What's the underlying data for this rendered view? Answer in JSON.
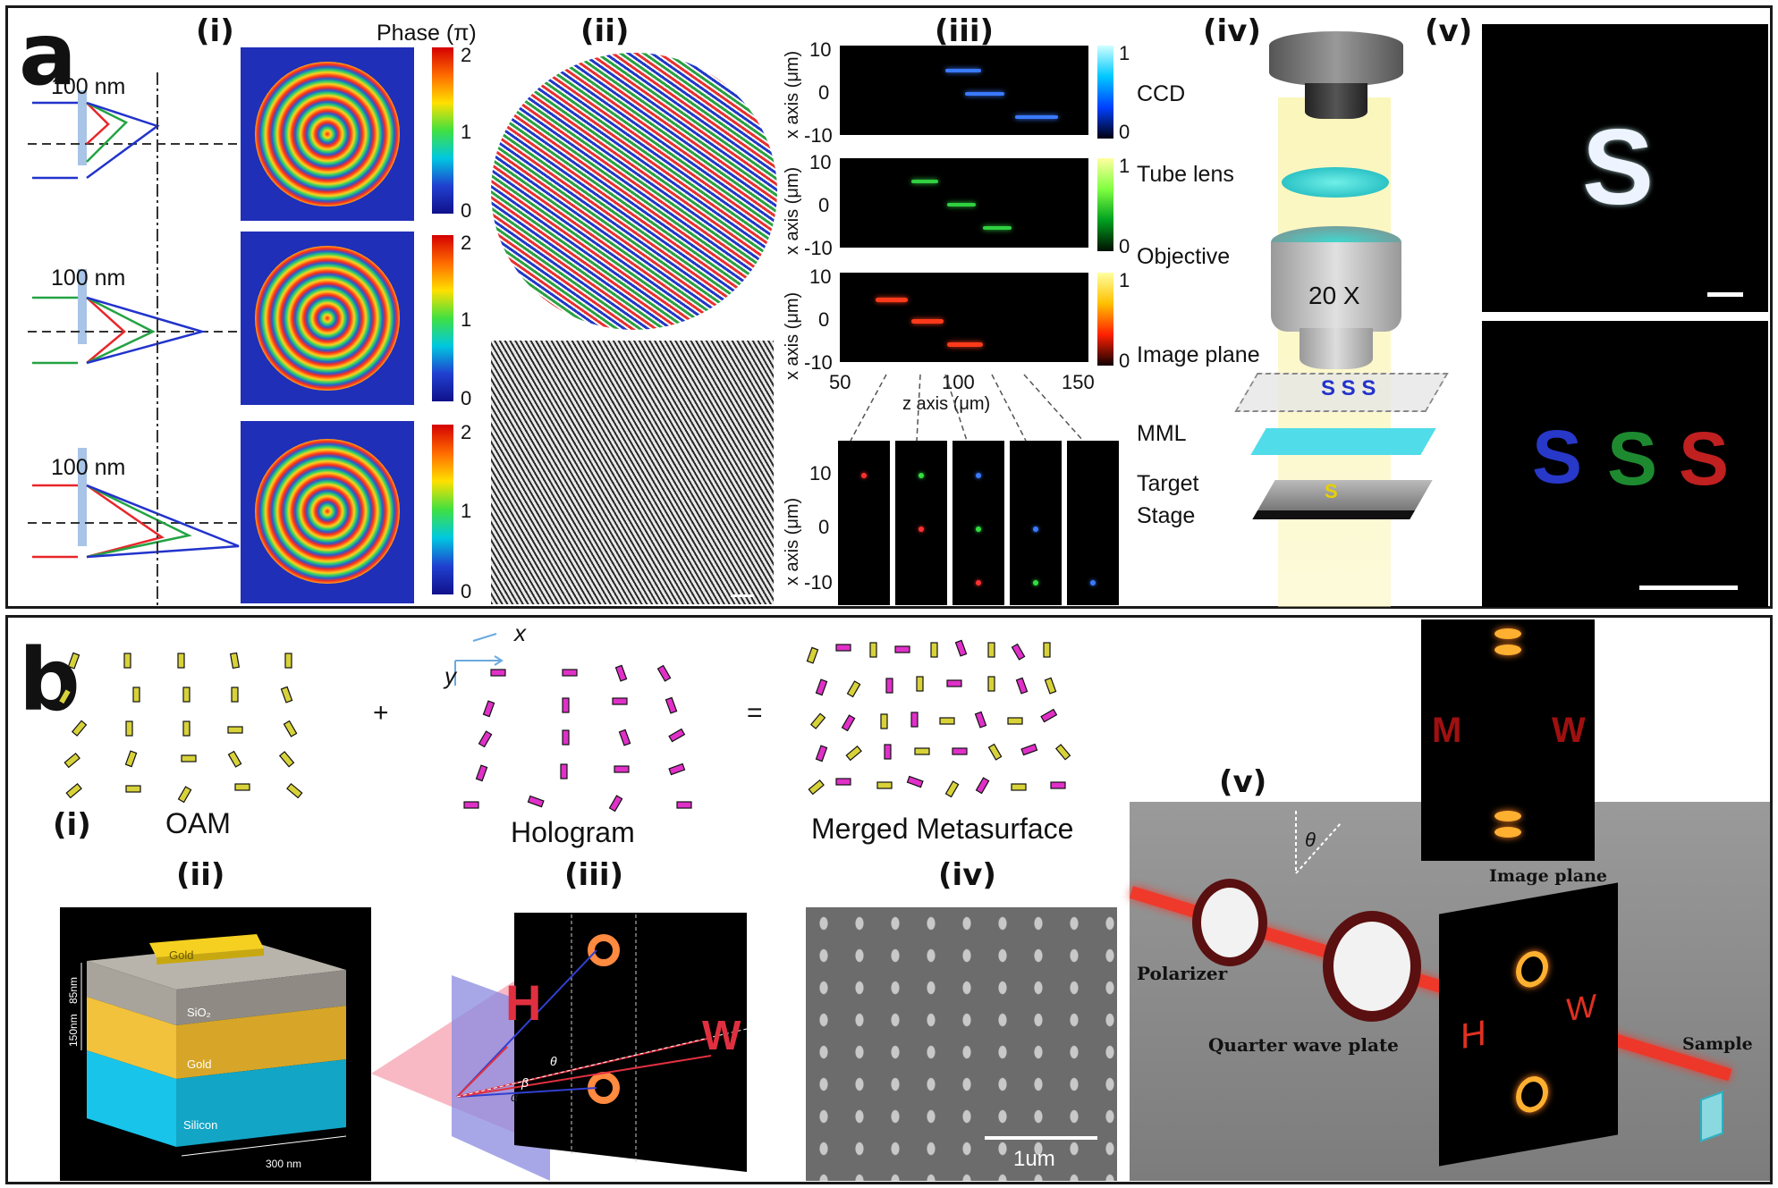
{
  "panel_a": {
    "letter": "a",
    "sub_i": "(i)",
    "sub_ii": "(ii)",
    "sub_iii": "(iii)",
    "sub_iv": "(iv)",
    "sub_v": "(v)",
    "ray_label": "100 nm",
    "phase_title": "Phase (π)",
    "colorbar_ticks": [
      "2",
      "1",
      "0"
    ],
    "iii_colorbar_ticks": [
      "1",
      "0"
    ],
    "iii_yticks": [
      "10",
      "0",
      "-10"
    ],
    "iii_xticks": [
      "50",
      "100",
      "150"
    ],
    "iii_ylabel": "x axis (μm)",
    "iii_xlabel": "z axis (μm)",
    "iii_small_ylabel": "x axis (μm)",
    "iv_labels": [
      "CCD",
      "Tube lens",
      "Objective",
      "Image plane",
      "MML",
      "Target",
      "Stage"
    ],
    "objective_mag": "20 X",
    "image_plane_text": "S S S",
    "v_top_letter": "S",
    "v_bottom_letters": [
      "S",
      "S",
      "S"
    ]
  },
  "panel_b": {
    "letter": "b",
    "sub_i": "(i)",
    "sub_ii": "(ii)",
    "sub_iii": "(iii)",
    "sub_iv": "(iv)",
    "sub_v": "(v)",
    "plus": "+",
    "equals": "=",
    "oam": "OAM",
    "hologram": "Hologram",
    "merged": "Merged Metasurface",
    "axis_x": "x",
    "axis_y": "y",
    "stack_labels": [
      "Gold",
      "SiO₂",
      "Gold",
      "Silicon"
    ],
    "dims": [
      "85nm",
      "150nm",
      "300 nm"
    ],
    "iii_letters": [
      "H",
      "W"
    ],
    "iii_angles": [
      "θ",
      "β",
      "α"
    ],
    "sem_scale": "1um",
    "v_letters_top": [
      "M",
      "W"
    ],
    "v_letters_screen": [
      "H",
      "W"
    ],
    "v_theta": "θ",
    "v_labels": [
      "Image plane",
      "Polarizer",
      "Quarter wave plate",
      "Sample"
    ]
  },
  "colors": {
    "red": "#e8262a",
    "green": "#23a343",
    "blue": "#2233cc",
    "yellow_bar": "#d8d23a",
    "magenta_bar": "#e030c8",
    "gold": "#f5c53c",
    "silicon": "#19c2e8",
    "sio2": "#b0aca4"
  }
}
